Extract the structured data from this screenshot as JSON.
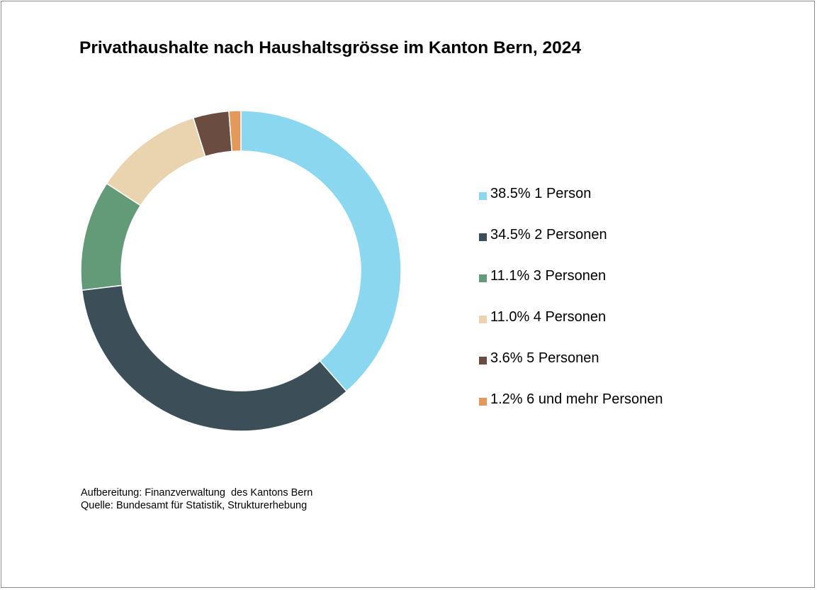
{
  "chart_data": {
    "type": "pie",
    "variant": "donut",
    "title": "Privathaushalte nach Haushaltsgrösse im Kanton Bern, 2024",
    "legend_position": "right",
    "slices": [
      {
        "label": "1 Person",
        "value": 38.5,
        "value_label": "38.5%",
        "color": "#8cd7f0"
      },
      {
        "label": "2 Personen",
        "value": 34.5,
        "value_label": "34.5%",
        "color": "#3c4f59"
      },
      {
        "label": "3 Personen",
        "value": 11.1,
        "value_label": "11.1%",
        "color": "#639b78"
      },
      {
        "label": "4 Personen",
        "value": 11.0,
        "value_label": "11.0%",
        "color": "#ead4b0"
      },
      {
        "label": "5 Personen",
        "value": 3.6,
        "value_label": "3.6%",
        "color": "#6b4c40"
      },
      {
        "label": "6 und mehr Personen",
        "value": 1.2,
        "value_label": "1.2%",
        "color": "#e4995a"
      }
    ]
  },
  "footer": {
    "line1": "Aufbereitung: Finanzverwaltung  des Kantons Bern",
    "line2": "Quelle: Bundesamt für Statistik, Strukturerhebung"
  }
}
